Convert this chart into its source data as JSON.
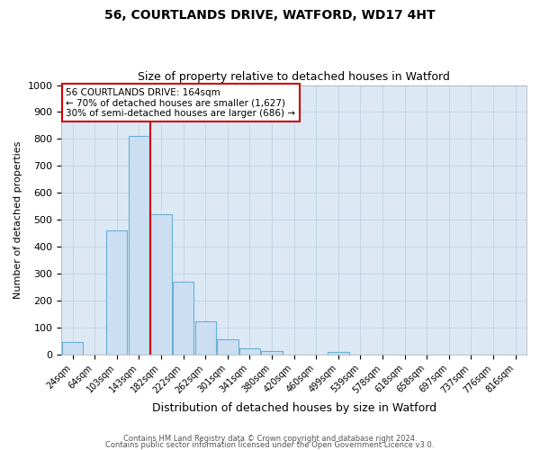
{
  "title1": "56, COURTLANDS DRIVE, WATFORD, WD17 4HT",
  "title2": "Size of property relative to detached houses in Watford",
  "xlabel": "Distribution of detached houses by size in Watford",
  "ylabel": "Number of detached properties",
  "bar_labels": [
    "24sqm",
    "64sqm",
    "103sqm",
    "143sqm",
    "182sqm",
    "222sqm",
    "262sqm",
    "301sqm",
    "341sqm",
    "380sqm",
    "420sqm",
    "460sqm",
    "499sqm",
    "539sqm",
    "578sqm",
    "618sqm",
    "658sqm",
    "697sqm",
    "737sqm",
    "776sqm",
    "816sqm"
  ],
  "bar_values": [
    47,
    0,
    460,
    810,
    520,
    270,
    125,
    57,
    22,
    13,
    0,
    0,
    10,
    0,
    0,
    0,
    0,
    0,
    0,
    0,
    0
  ],
  "bar_color": "#ccdff2",
  "bar_edge_color": "#6aaed6",
  "vline_color": "#cc0000",
  "vline_pos": 3.5,
  "ylim": [
    0,
    1000
  ],
  "yticks": [
    0,
    100,
    200,
    300,
    400,
    500,
    600,
    700,
    800,
    900,
    1000
  ],
  "annotation_title": "56 COURTLANDS DRIVE: 164sqm",
  "annotation_line1": "← 70% of detached houses are smaller (1,627)",
  "annotation_line2": "30% of semi-detached houses are larger (686) →",
  "annotation_box_color": "#ffffff",
  "annotation_box_edge_color": "#cc0000",
  "footer1": "Contains HM Land Registry data © Crown copyright and database right 2024.",
  "footer2": "Contains public sector information licensed under the Open Government Licence v3.0.",
  "plot_bg_color": "#dce9f5",
  "fig_bg_color": "#ffffff",
  "grid_color": "#b8cfe0"
}
